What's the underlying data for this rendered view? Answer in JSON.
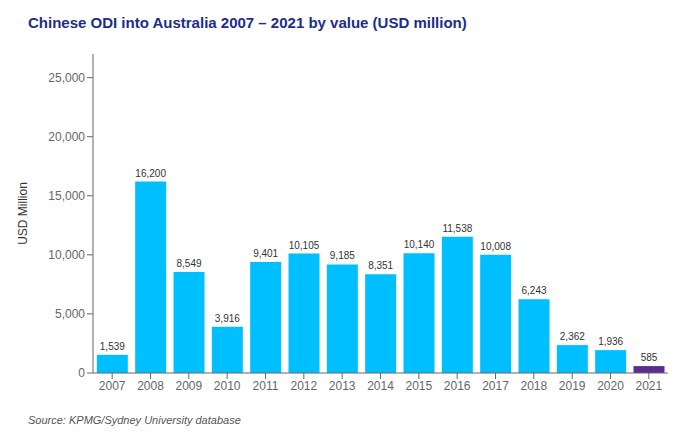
{
  "chart_data": {
    "type": "bar",
    "title": "Chinese ODI into Australia 2007 – 2021 by value (USD million)",
    "ylabel": "USD Million",
    "annotations": [
      "Source: KPMG/Sydney University database"
    ],
    "categories": [
      "2007",
      "2008",
      "2009",
      "2010",
      "2011",
      "2012",
      "2013",
      "2014",
      "2015",
      "2016",
      "2017",
      "2018",
      "2019",
      "2020",
      "2021"
    ],
    "values": [
      1539,
      16200,
      8549,
      3916,
      9401,
      10105,
      9185,
      8351,
      10140,
      11538,
      10008,
      6243,
      2362,
      1936,
      585
    ],
    "value_labels": [
      "1,539",
      "16,200",
      "8,549",
      "3,916",
      "9,401",
      "10,105",
      "9,185",
      "8,351",
      "10,140",
      "11,538",
      "10,008",
      "6,243",
      "2,362",
      "1,936",
      "585"
    ],
    "data_labels": true,
    "colors": [
      "#00BFFF",
      "#00BFFF",
      "#00BFFF",
      "#00BFFF",
      "#00BFFF",
      "#00BFFF",
      "#00BFFF",
      "#00BFFF",
      "#00BFFF",
      "#00BFFF",
      "#00BFFF",
      "#00BFFF",
      "#00BFFF",
      "#00BFFF",
      "#5B2D8E"
    ],
    "title_color": "#1A2E8A",
    "ylim": [
      0,
      27000
    ],
    "yticks": [
      0,
      {
        "value": 5000,
        "label": "5,000"
      },
      {
        "value": 10000,
        "label": "10,000"
      },
      {
        "value": 15000,
        "label": "15,000"
      },
      {
        "value": 20000,
        "label": "20,000"
      },
      {
        "value": 25000,
        "label": "25,000"
      }
    ],
    "grid": false
  }
}
